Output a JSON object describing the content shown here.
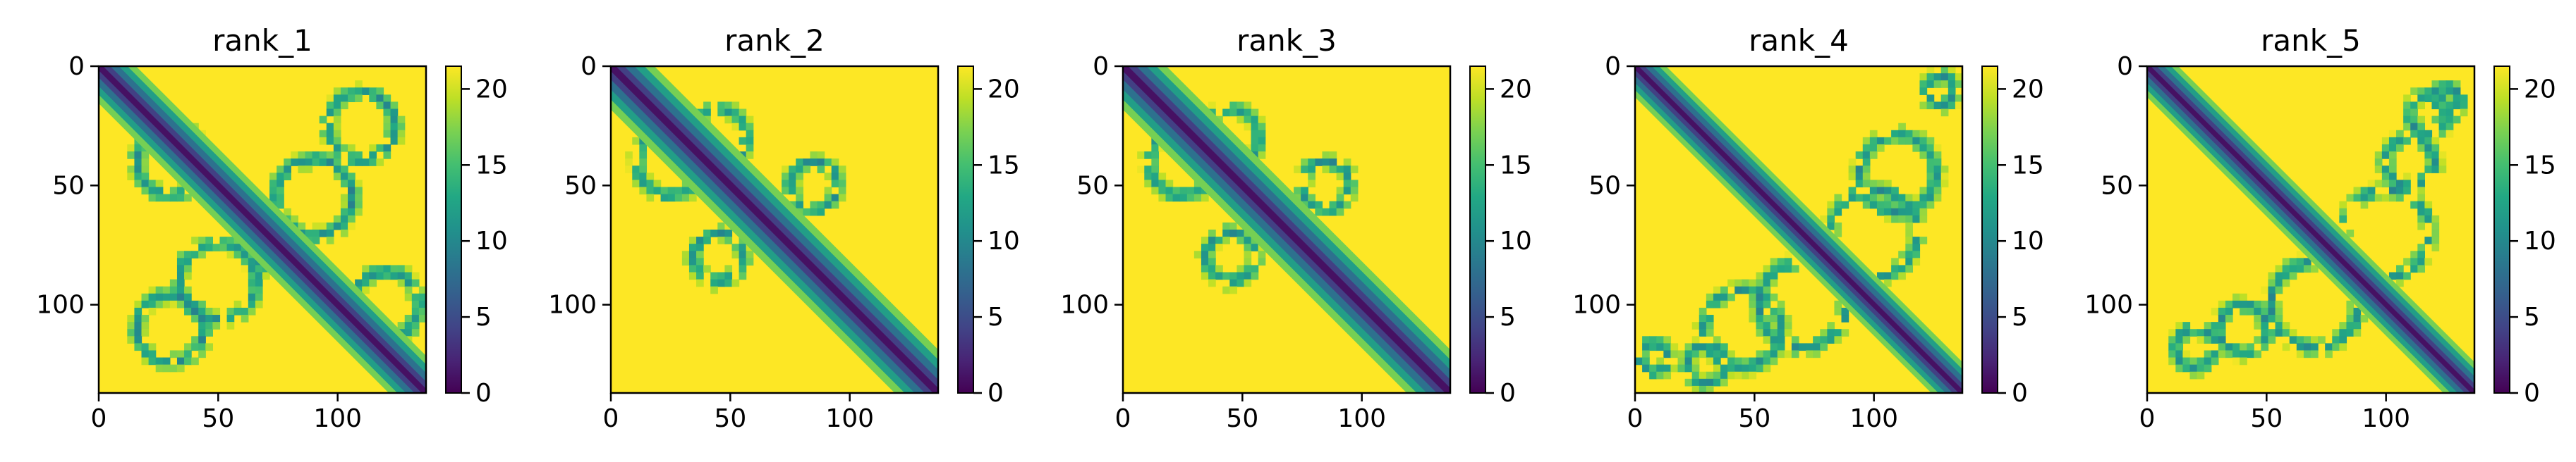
{
  "chart_data": {
    "type": "heatmap",
    "colormap": "viridis",
    "colorbar": {
      "range": [
        0,
        21.5
      ],
      "ticks": [
        0,
        5,
        10,
        15,
        20
      ],
      "tick_labels": [
        "0",
        "5",
        "10",
        "15",
        "20"
      ]
    },
    "matrix_size": 137,
    "x_ticks": [
      0,
      50,
      100
    ],
    "x_tick_labels": [
      "0",
      "50",
      "100"
    ],
    "y_ticks": [
      0,
      50,
      100
    ],
    "y_tick_labels": [
      "0",
      "50",
      "100"
    ],
    "panels": [
      {
        "title": "rank_1",
        "band_width": 6,
        "structure": "many long anti-diagonal arcs across the whole map with a dotted grid texture; off-diagonal areas mostly saturated (>21)"
      },
      {
        "title": "rank_2",
        "band_width": 7,
        "structure": "central diagonal band with a few arcs in the upper-left block; upper-right and lower-left mostly saturated"
      },
      {
        "title": "rank_3",
        "band_width": 7,
        "structure": "similar to rank_2: diagonal band with arcs in the upper-left block, saturated elsewhere"
      },
      {
        "title": "rank_4",
        "band_width": 5,
        "structure": "diagonal band plus wide curved arcs around the center and corner contacts; noisy speckle"
      },
      {
        "title": "rank_5",
        "band_width": 5,
        "structure": "diagonal band plus curved arcs, top-right contact patch and lower-left arcs; speckle"
      }
    ]
  }
}
